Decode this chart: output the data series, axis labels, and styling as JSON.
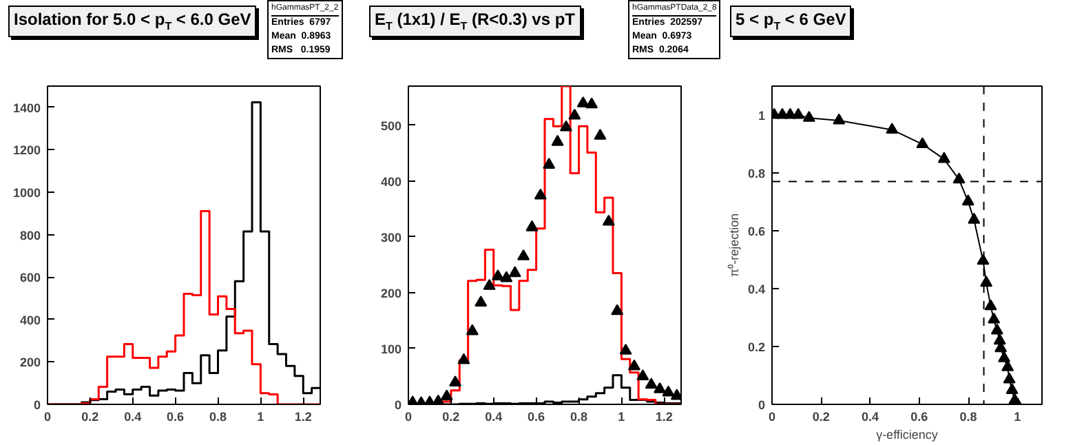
{
  "chart_data": [
    {
      "type": "histogram",
      "title": "Isolation for 5.0 < p$_{T}$ < 6.0 GeV",
      "bins": [
        0,
        0.04,
        0.08,
        0.12,
        0.16,
        0.2,
        0.24,
        0.28,
        0.32,
        0.36,
        0.4,
        0.44,
        0.48,
        0.52,
        0.56,
        0.6,
        0.64,
        0.68,
        0.72,
        0.76,
        0.8,
        0.84,
        0.88,
        0.92,
        0.96,
        1.0,
        1.04,
        1.08,
        1.12,
        1.16,
        1.2,
        1.24,
        1.28
      ],
      "series": [
        {
          "color": "#000000",
          "values": [
            0,
            0,
            0,
            0,
            10,
            20,
            24,
            60,
            70,
            48,
            70,
            83,
            41,
            65,
            70,
            65,
            148,
            100,
            231,
            148,
            254,
            414,
            580,
            815,
            1424,
            815,
            284,
            237,
            181,
            134,
            53,
            77
          ]
        },
        {
          "color": "#ff0000",
          "values": [
            0,
            0,
            0,
            0,
            5,
            24,
            83,
            225,
            225,
            284,
            219,
            219,
            172,
            225,
            249,
            325,
            521,
            515,
            911,
            424,
            509,
            450,
            335,
            347,
            189,
            53,
            47,
            0,
            0,
            0,
            0,
            0
          ]
        }
      ],
      "xlim": [
        0,
        1.28
      ],
      "ylim": [
        0,
        1500
      ],
      "xticks": [
        0,
        0.2,
        0.4,
        0.6,
        0.8,
        1,
        1.2
      ],
      "yticks": [
        0,
        200,
        400,
        600,
        800,
        1000,
        1200,
        1400
      ],
      "annotations": [
        "hGammasPT_2_2",
        "Entries  6797",
        "Mean  0.8963",
        "RMS   0.1959"
      ]
    },
    {
      "type": "histogram",
      "title": "E$_{T}$ (1x1) / E$_{T}$ (R<0.3) vs pT",
      "bins": [
        0,
        0.04,
        0.08,
        0.12,
        0.16,
        0.2,
        0.24,
        0.28,
        0.32,
        0.36,
        0.4,
        0.44,
        0.48,
        0.52,
        0.56,
        0.6,
        0.64,
        0.68,
        0.72,
        0.76,
        0.8,
        0.84,
        0.88,
        0.92,
        0.96,
        1.0,
        1.04,
        1.08,
        1.12,
        1.16,
        1.2,
        1.24,
        1.28
      ],
      "series": [
        {
          "color": "#000000",
          "values": [
            0,
            0,
            0,
            0,
            0,
            0,
            1,
            1,
            2,
            1,
            2,
            2,
            1,
            2,
            2,
            2,
            5,
            3,
            5,
            5,
            9,
            14,
            20,
            30,
            52,
            30,
            8,
            8,
            5,
            3,
            2,
            2
          ]
        },
        {
          "color": "#ff0000",
          "values": [
            0,
            0,
            2,
            2,
            5,
            25,
            79,
            221,
            223,
            277,
            213,
            212,
            169,
            221,
            241,
            315,
            511,
            498,
            570,
            414,
            498,
            451,
            344,
            370,
            235,
            81,
            57,
            9,
            8,
            0,
            0,
            0
          ]
        },
        {
          "type": "scatter",
          "color": "#000000",
          "x": [
            0.02,
            0.06,
            0.1,
            0.14,
            0.18,
            0.22,
            0.26,
            0.3,
            0.34,
            0.38,
            0.42,
            0.46,
            0.5,
            0.54,
            0.58,
            0.62,
            0.66,
            0.7,
            0.74,
            0.78,
            0.82,
            0.86,
            0.9,
            0.94,
            0.98,
            1.02,
            1.06,
            1.1,
            1.14,
            1.18,
            1.22,
            1.26
          ],
          "values": [
            3,
            2,
            3,
            5,
            14,
            39,
            79,
            131,
            182,
            212,
            229,
            226,
            235,
            265,
            317,
            374,
            429,
            470,
            496,
            517,
            539,
            537,
            481,
            327,
            167,
            96,
            68,
            50,
            35,
            27,
            21,
            15
          ],
          "marker": "triangle"
        }
      ],
      "xlim": [
        0,
        1.28
      ],
      "ylim": [
        0,
        570
      ],
      "xticks": [
        0,
        0.2,
        0.4,
        0.6,
        0.8,
        1,
        1.2
      ],
      "yticks": [
        0,
        100,
        200,
        300,
        400,
        500
      ],
      "annotations": [
        "hGammasPTData_2_8",
        "Entries  202597",
        "Mean  0.6973",
        "RMS  0.2064"
      ]
    },
    {
      "type": "scatter",
      "title": "5 < p$_{T}$ < 6 GeV",
      "xlabel": "γ-efficiency",
      "ylabel": "π⁰-rejection",
      "series": [
        {
          "type": "line",
          "color": "#000000",
          "x": [
            0.009,
            0.042,
            0.074,
            0.107,
            0.151,
            0.273,
            0.489,
            0.613,
            0.701,
            0.762,
            0.799,
            0.823,
            0.86,
            0.873,
            0.891,
            0.904,
            0.917,
            0.928,
            0.932,
            0.946,
            0.96,
            0.967,
            0.978,
            0.989,
            1.0
          ],
          "values": [
            1.0,
            1.0,
            1.0,
            1.0,
            0.99,
            0.981,
            0.949,
            0.899,
            0.848,
            0.777,
            0.701,
            0.638,
            0.496,
            0.42,
            0.339,
            0.293,
            0.255,
            0.22,
            0.194,
            0.159,
            0.128,
            0.086,
            0.049,
            0.014,
            0.0
          ]
        },
        {
          "type": "scatter",
          "color": "#000000",
          "marker": "triangle",
          "x": [
            0.009,
            0.042,
            0.074,
            0.107,
            0.151,
            0.273,
            0.489,
            0.613,
            0.701,
            0.762,
            0.799,
            0.823,
            0.86,
            0.873,
            0.891,
            0.904,
            0.917,
            0.928,
            0.932,
            0.946,
            0.96,
            0.967,
            0.978,
            0.989,
            1.0
          ],
          "values": [
            1.0,
            1.0,
            1.0,
            1.0,
            0.99,
            0.981,
            0.949,
            0.899,
            0.848,
            0.777,
            0.701,
            0.638,
            0.496,
            0.42,
            0.339,
            0.293,
            0.255,
            0.22,
            0.194,
            0.159,
            0.128,
            0.086,
            0.049,
            0.014,
            0.0
          ]
        }
      ],
      "xlim": [
        0,
        1.1
      ],
      "ylim": [
        0,
        1.1
      ],
      "xticks": [
        0,
        0.2,
        0.4,
        0.6,
        0.8,
        1
      ],
      "yticks": [
        0,
        0.2,
        0.4,
        0.6,
        0.8,
        1
      ],
      "ref_lines": [
        {
          "axis": "x",
          "value": 0.863,
          "color": "#000000",
          "line_style": "dashed"
        },
        {
          "axis": "y",
          "value": 0.77,
          "color": "#000000",
          "line_style": "dashed"
        }
      ]
    }
  ]
}
